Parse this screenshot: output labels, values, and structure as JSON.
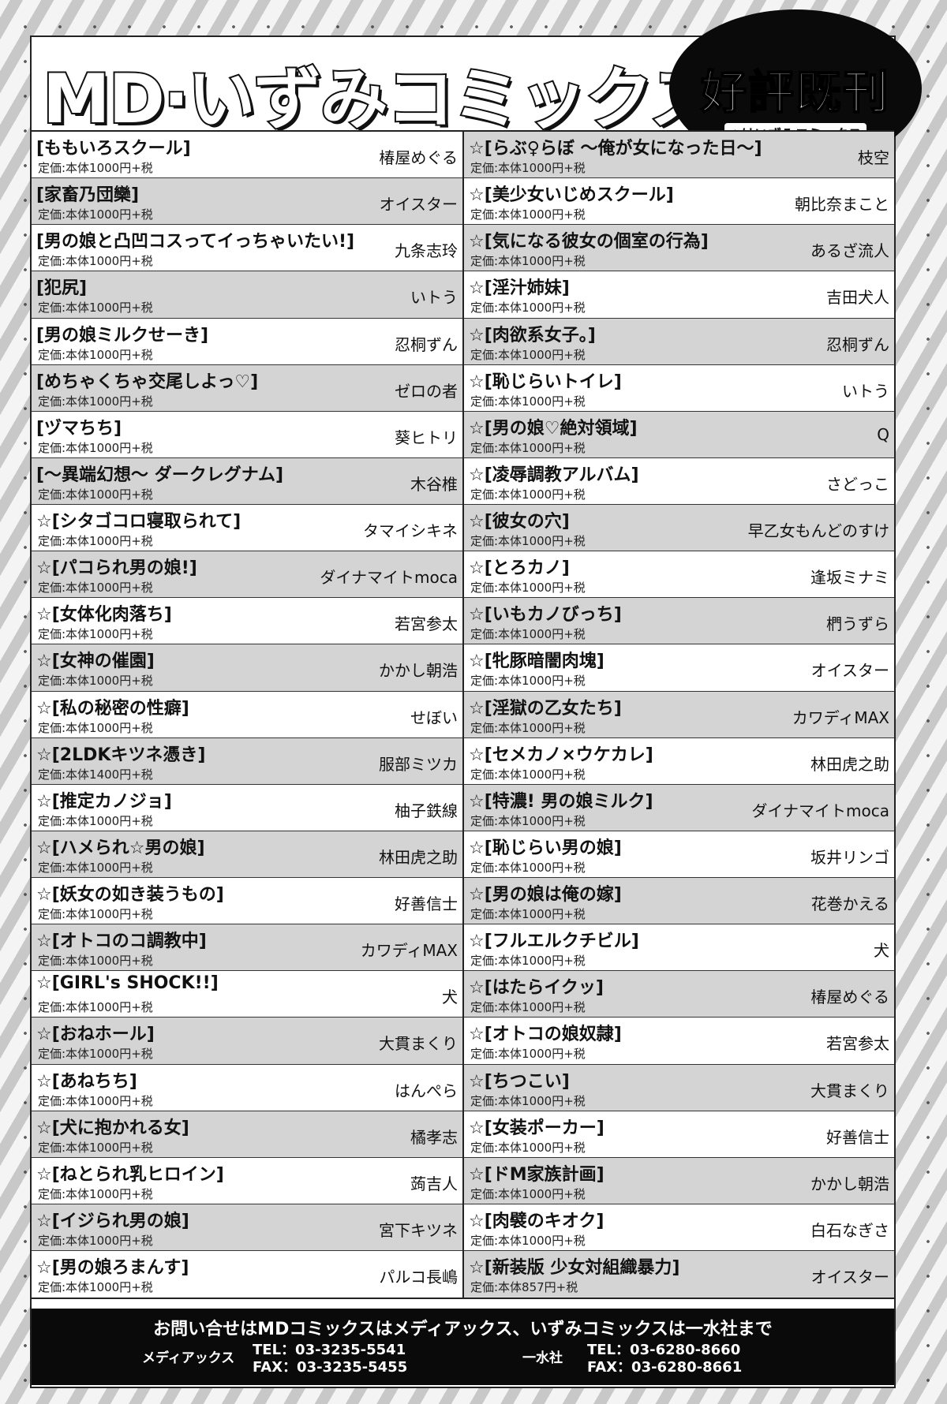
{
  "header": {
    "title": "MD·いずみコミックス",
    "badge": "好評既刊",
    "badge_sub": "☆はいずみコミックス"
  },
  "left": [
    {
      "title": "[ももいろスクール]",
      "price": "定価:本体1000円+税",
      "author": "椿屋めぐる"
    },
    {
      "title": "[家畜乃団欒]",
      "price": "定価:本体1000円+税",
      "author": "オイスター"
    },
    {
      "title": "[男の娘と凸凹コスってイっちゃいたい!]",
      "price": "定価:本体1000円+税",
      "author": "九条志玲"
    },
    {
      "title": "[犯尻]",
      "price": "定価:本体1000円+税",
      "author": "いトう"
    },
    {
      "title": "[男の娘ミルクせーき]",
      "price": "定価:本体1000円+税",
      "author": "忍桐ずん"
    },
    {
      "title": "[めちゃくちゃ交尾しよっ♡]",
      "price": "定価:本体1000円+税",
      "author": "ゼロの者"
    },
    {
      "title": "[ヅマちち]",
      "price": "定価:本体1000円+税",
      "author": "葵ヒトリ"
    },
    {
      "title": "[〜異端幻想〜 ダークレグナム]",
      "price": "定価:本体1000円+税",
      "author": "木谷椎"
    },
    {
      "title": "☆[シタゴコロ寝取られて]",
      "price": "定価:本体1000円+税",
      "author": "タマイシキネ"
    },
    {
      "title": "☆[パコられ男の娘!]",
      "price": "定価:本体1000円+税",
      "author": "ダイナマイトmoca"
    },
    {
      "title": "☆[女体化肉落ち]",
      "price": "定価:本体1000円+税",
      "author": "若宮参太"
    },
    {
      "title": "☆[女神の催園]",
      "price": "定価:本体1000円+税",
      "author": "かかし朝浩"
    },
    {
      "title": "☆[私の秘密の性癖]",
      "price": "定価:本体1000円+税",
      "author": "せぼい"
    },
    {
      "title": "☆[2LDKキツネ憑き]",
      "price": "定価:本体1400円+税",
      "author": "服部ミツカ"
    },
    {
      "title": "☆[推定カノジョ]",
      "price": "定価:本体1000円+税",
      "author": "柚子鉄線"
    },
    {
      "title": "☆[ハメられ☆男の娘]",
      "price": "定価:本体1000円+税",
      "author": "林田虎之助"
    },
    {
      "title": "☆[妖女の如き装うもの]",
      "price": "定価:本体1000円+税",
      "author": "好善信士"
    },
    {
      "title": "☆[オトコのコ調教中]",
      "price": "定価:本体1000円+税",
      "author": "カワディMAX"
    },
    {
      "title": "☆[GIRL's SHOCK!!]",
      "price": "定価:本体1000円+税",
      "author": "犬"
    },
    {
      "title": "☆[おねホール]",
      "price": "定価:本体1000円+税",
      "author": "大貫まくり"
    },
    {
      "title": "☆[あねちち]",
      "price": "定価:本体1000円+税",
      "author": "はんぺら"
    },
    {
      "title": "☆[犬に抱かれる女]",
      "price": "定価:本体1000円+税",
      "author": "橘孝志"
    },
    {
      "title": "☆[ねとられ乳ヒロイン]",
      "price": "定価:本体1000円+税",
      "author": "蒟吉人"
    },
    {
      "title": "☆[イジられ男の娘]",
      "price": "定価:本体1000円+税",
      "author": "宮下キツネ"
    },
    {
      "title": "☆[男の娘ろまんす]",
      "price": "定価:本体1000円+税",
      "author": "パルコ長嶋"
    }
  ],
  "right": [
    {
      "title": "☆[らぶ♀らぼ 〜俺が女になった日〜]",
      "price": "定価:本体1000円+税",
      "author": "枝空"
    },
    {
      "title": "☆[美少女いじめスクール]",
      "price": "定価:本体1000円+税",
      "author": "朝比奈まこと"
    },
    {
      "title": "☆[気になる彼女の個室の行為]",
      "price": "定価:本体1000円+税",
      "author": "あるざ流人"
    },
    {
      "title": "☆[淫汁姉妹]",
      "price": "定価:本体1000円+税",
      "author": "吉田犬人"
    },
    {
      "title": "☆[肉欲系女子。]",
      "price": "定価:本体1000円+税",
      "author": "忍桐ずん"
    },
    {
      "title": "☆[恥じらいトイレ]",
      "price": "定価:本体1000円+税",
      "author": "いトう"
    },
    {
      "title": "☆[男の娘♡絶対領域]",
      "price": "定価:本体1000円+税",
      "author": "Q"
    },
    {
      "title": "☆[凌辱調教アルバム]",
      "price": "定価:本体1000円+税",
      "author": "さどっこ"
    },
    {
      "title": "☆[彼女の穴]",
      "price": "定価:本体1000円+税",
      "author": "早乙女もんどのすけ"
    },
    {
      "title": "☆[とろカノ]",
      "price": "定価:本体1000円+税",
      "author": "逢坂ミナミ"
    },
    {
      "title": "☆[いもカノびっち]",
      "price": "定価:本体1000円+税",
      "author": "椚うずら"
    },
    {
      "title": "☆[牝豚暗闇肉塊]",
      "price": "定価:本体1000円+税",
      "author": "オイスター"
    },
    {
      "title": "☆[淫獄の乙女たち]",
      "price": "定価:本体1000円+税",
      "author": "カワディMAX"
    },
    {
      "title": "☆[セメカノ×ウケカレ]",
      "price": "定価:本体1000円+税",
      "author": "林田虎之助"
    },
    {
      "title": "☆[特濃! 男の娘ミルク]",
      "price": "定価:本体1000円+税",
      "author": "ダイナマイトmoca"
    },
    {
      "title": "☆[恥じらい男の娘]",
      "price": "定価:本体1000円+税",
      "author": "坂井リンゴ"
    },
    {
      "title": "☆[男の娘は俺の嫁]",
      "price": "定価:本体1000円+税",
      "author": "花巻かえる"
    },
    {
      "title": "☆[フルエルクチビル]",
      "price": "定価:本体1000円+税",
      "author": "犬"
    },
    {
      "title": "☆[はたらイクッ]",
      "price": "定価:本体1000円+税",
      "author": "椿屋めぐる"
    },
    {
      "title": "☆[オトコの娘奴隷]",
      "price": "定価:本体1000円+税",
      "author": "若宮参太"
    },
    {
      "title": "☆[ちつこい]",
      "price": "定価:本体1000円+税",
      "author": "大貫まくり"
    },
    {
      "title": "☆[女装ポーカー]",
      "price": "定価:本体1000円+税",
      "author": "好善信士"
    },
    {
      "title": "☆[ドM家族計画]",
      "price": "定価:本体1000円+税",
      "author": "かかし朝浩"
    },
    {
      "title": "☆[肉襞のキオク]",
      "price": "定価:本体1000円+税",
      "author": "白石なぎさ"
    },
    {
      "title": "☆[新装版 少女対組織暴力]",
      "price": "定価:本体857円+税",
      "author": "オイスター"
    }
  ],
  "footer": {
    "heading": "お問い合せはMDコミックスはメディアックス、いずみコミックスは一水社まで",
    "company1": "メディアックス",
    "tel1": "TEL：03-3235-5541",
    "fax1": "FAX：03-3235-5455",
    "company2": "一水社",
    "tel2": "TEL：03-6280-8660",
    "fax2": "FAX：03-6280-8661"
  }
}
